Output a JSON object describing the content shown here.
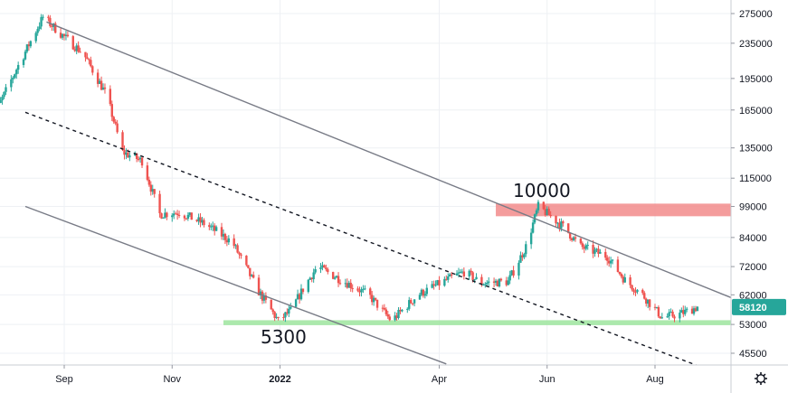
{
  "chart_data": {
    "type": "candlestick",
    "scale": "log",
    "grid": true,
    "colors": {
      "up": "#26a69a",
      "down": "#ef5350",
      "channel": "#787b86",
      "midline": "#131722",
      "resistance_zone": "#f28b8b",
      "support_zone": "#9de59d",
      "price_label_bg": "#26a69a",
      "price_label_text": "#ffffff",
      "grid": "#eef0f4",
      "axis_text": "#131722"
    },
    "y_ticks": [
      275000,
      235000,
      195000,
      165000,
      135000,
      115000,
      99000,
      84000,
      72000,
      62000,
      53000,
      45500
    ],
    "y_tick_labels": [
      "275000",
      "235000",
      "195000",
      "165000",
      "135000",
      "115000",
      "99000",
      "84000",
      "72000",
      "62000",
      "53000",
      "45500"
    ],
    "x_ticks": [
      {
        "date": "2021-09-01",
        "label": "Sep"
      },
      {
        "date": "2021-11-01",
        "label": "Nov"
      },
      {
        "date": "2022-01-01",
        "label": "2022"
      },
      {
        "date": "2022-04-01",
        "label": "Apr"
      },
      {
        "date": "2022-06-01",
        "label": "Jun"
      },
      {
        "date": "2022-08-01",
        "label": "Aug"
      }
    ],
    "current_price": {
      "value": 58120,
      "label": "58120"
    },
    "anchors": [
      {
        "date": "2021-07-20",
        "price": 150000
      },
      {
        "date": "2021-08-05",
        "price": 205000
      },
      {
        "date": "2021-08-20",
        "price": 270000
      },
      {
        "date": "2021-08-31",
        "price": 245000
      },
      {
        "date": "2021-09-12",
        "price": 222000
      },
      {
        "date": "2021-09-25",
        "price": 178000
      },
      {
        "date": "2021-10-04",
        "price": 132000
      },
      {
        "date": "2021-10-15",
        "price": 126000
      },
      {
        "date": "2021-10-25",
        "price": 95000
      },
      {
        "date": "2021-11-05",
        "price": 96000
      },
      {
        "date": "2021-11-20",
        "price": 90000
      },
      {
        "date": "2021-12-05",
        "price": 82000
      },
      {
        "date": "2021-12-20",
        "price": 63000
      },
      {
        "date": "2021-12-31",
        "price": 54000
      },
      {
        "date": "2022-01-07",
        "price": 57000
      },
      {
        "date": "2022-01-15",
        "price": 65000
      },
      {
        "date": "2022-01-22",
        "price": 72000
      },
      {
        "date": "2022-02-05",
        "price": 67000
      },
      {
        "date": "2022-02-20",
        "price": 62000
      },
      {
        "date": "2022-03-05",
        "price": 54000
      },
      {
        "date": "2022-03-20",
        "price": 62000
      },
      {
        "date": "2022-04-05",
        "price": 67000
      },
      {
        "date": "2022-04-15",
        "price": 70000
      },
      {
        "date": "2022-04-25",
        "price": 66000
      },
      {
        "date": "2022-05-10",
        "price": 66500
      },
      {
        "date": "2022-05-20",
        "price": 80000
      },
      {
        "date": "2022-05-27",
        "price": 99000
      },
      {
        "date": "2022-06-03",
        "price": 94000
      },
      {
        "date": "2022-06-10",
        "price": 89000
      },
      {
        "date": "2022-06-20",
        "price": 80000
      },
      {
        "date": "2022-07-05",
        "price": 76000
      },
      {
        "date": "2022-07-15",
        "price": 67000
      },
      {
        "date": "2022-07-25",
        "price": 62000
      },
      {
        "date": "2022-08-05",
        "price": 55000
      },
      {
        "date": "2022-08-15",
        "price": 56000
      },
      {
        "date": "2022-08-25",
        "price": 58120
      }
    ],
    "channel_lines": [
      {
        "name": "upper",
        "from": {
          "date": "2021-08-22",
          "price": 263000
        },
        "to": {
          "date": "2022-09-20",
          "price": 59500
        },
        "style": "solid"
      },
      {
        "name": "middle",
        "from": {
          "date": "2021-08-10",
          "price": 163000
        },
        "to": {
          "date": "2022-09-05",
          "price": 41000
        },
        "style": "dashed"
      },
      {
        "name": "lower",
        "from": {
          "date": "2021-08-10",
          "price": 99000
        },
        "to": {
          "date": "2022-04-05",
          "price": 43000
        },
        "style": "solid"
      }
    ],
    "zones": [
      {
        "name": "resistance",
        "label": "10000",
        "from_date": "2022-05-03",
        "to_date": "2022-09-30",
        "price_low": 94000,
        "price_high": 100500
      },
      {
        "name": "support",
        "label": "5300",
        "from_date": "2021-11-30",
        "to_date": "2022-09-30",
        "price_low": 52800,
        "price_high": 54200
      }
    ],
    "annotations": [
      {
        "name": "annotation-10000",
        "text": "10000",
        "date": "2022-05-29",
        "price": 104000
      },
      {
        "name": "annotation-5300",
        "text": "5300",
        "date": "2022-01-03",
        "price": 48000
      }
    ]
  },
  "toolbar": {
    "settings_icon": "gear-icon"
  }
}
